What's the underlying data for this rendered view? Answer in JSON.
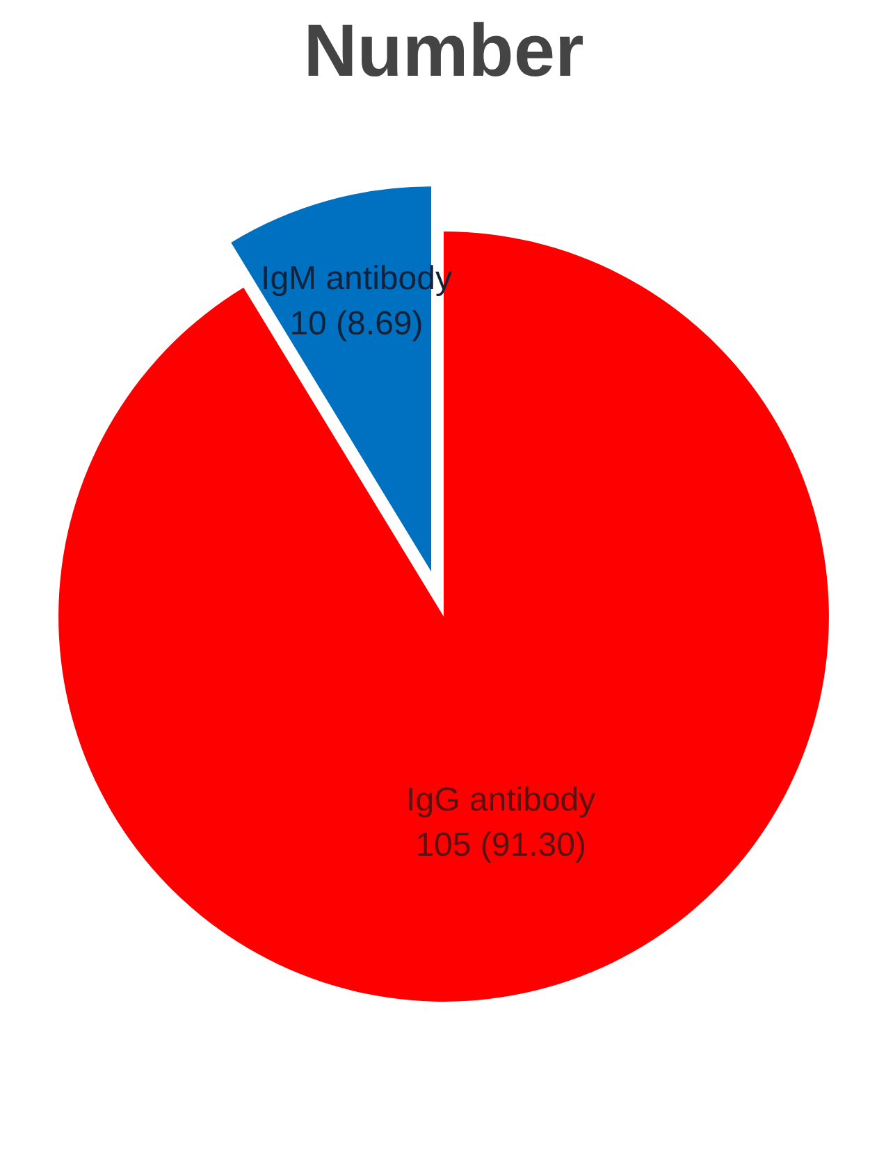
{
  "chart_data": {
    "type": "pie",
    "title": "Number",
    "categories": [
      "IgM antibody",
      "IgG antibody"
    ],
    "values": [
      10,
      105
    ],
    "colors": [
      "#0070c0",
      "#ff0000"
    ],
    "value_labels": [
      "10 (8.69)",
      "105 (91.30)"
    ]
  }
}
